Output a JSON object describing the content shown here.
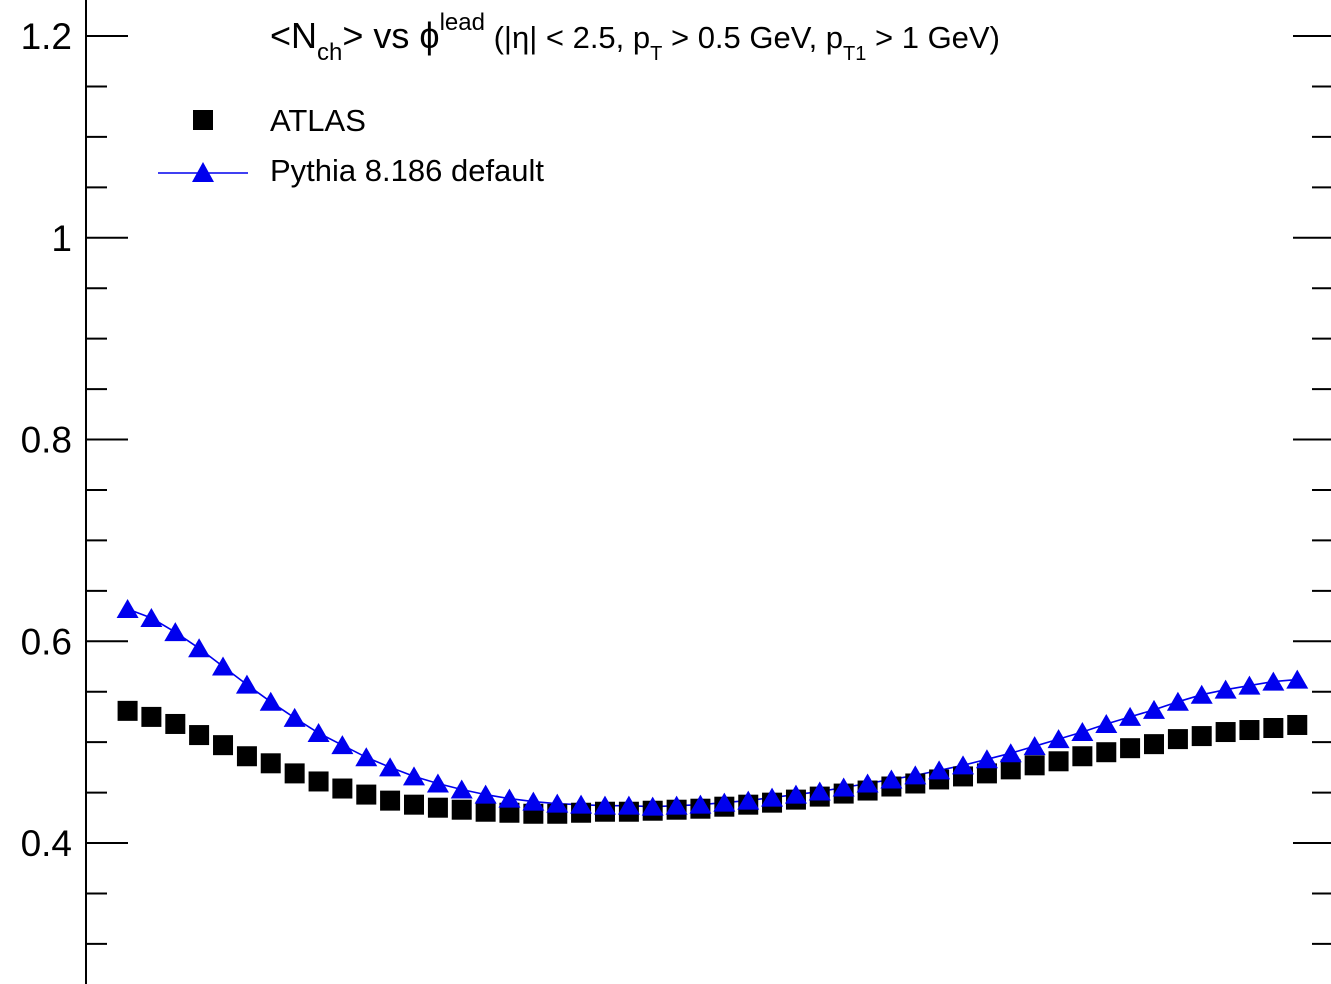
{
  "chart_data": {
    "type": "scatter",
    "title": {
      "prefix": "<N",
      "sub_ch": "ch",
      "mid": "> vs ",
      "phi": "ϕ",
      "sup_lead": "lead",
      "cond1": " (|η| < 2.5, p",
      "sub_T": "T",
      "cond2": " > 0.5 GeV, p",
      "sub_T1": "T1",
      "cond3": " > 1 GeV)"
    },
    "xlabel": "",
    "ylabel": "",
    "xlim": [
      0,
      1
    ],
    "ylim": [
      0.26,
      1.24
    ],
    "y_major_ticks": [
      0.4,
      0.6,
      0.8,
      1.0,
      1.2
    ],
    "y_tick_labels": [
      "0.4",
      "0.6",
      "0.8",
      "1",
      "1.2"
    ],
    "y_minor_ticks": [
      0.3,
      0.35,
      0.45,
      0.5,
      0.55,
      0.65,
      0.7,
      0.75,
      0.85,
      0.9,
      0.95,
      1.05,
      1.1,
      1.15
    ],
    "grid": false,
    "legend_position": "top-left",
    "x": [
      0.0081,
      0.0282,
      0.0484,
      0.0685,
      0.0887,
      0.1089,
      0.129,
      0.1492,
      0.1694,
      0.1895,
      0.2097,
      0.2298,
      0.25,
      0.2702,
      0.2903,
      0.3105,
      0.3306,
      0.3508,
      0.371,
      0.3911,
      0.4113,
      0.4315,
      0.4516,
      0.4718,
      0.4919,
      0.5121,
      0.5323,
      0.5524,
      0.5726,
      0.5927,
      0.6129,
      0.6331,
      0.6532,
      0.6734,
      0.6935,
      0.7137,
      0.7339,
      0.754,
      0.7742,
      0.7944,
      0.8145,
      0.8347,
      0.8548,
      0.875,
      0.8952,
      0.9153,
      0.9355,
      0.9556,
      0.9758,
      0.996
    ],
    "series": [
      {
        "name": "ATLAS",
        "marker": "square",
        "color": "#000000",
        "values": [
          0.531,
          0.525,
          0.518,
          0.507,
          0.497,
          0.486,
          0.479,
          0.469,
          0.461,
          0.454,
          0.448,
          0.442,
          0.438,
          0.435,
          0.433,
          0.431,
          0.43,
          0.429,
          0.429,
          0.43,
          0.431,
          0.431,
          0.432,
          0.433,
          0.434,
          0.436,
          0.438,
          0.44,
          0.443,
          0.446,
          0.449,
          0.452,
          0.456,
          0.459,
          0.463,
          0.466,
          0.469,
          0.473,
          0.477,
          0.481,
          0.486,
          0.49,
          0.494,
          0.498,
          0.503,
          0.506,
          0.51,
          0.512,
          0.514,
          0.517
        ]
      },
      {
        "name": "Pythia 8.186 default",
        "marker": "triangle",
        "line": true,
        "color": "#0000ee",
        "values": [
          0.632,
          0.623,
          0.609,
          0.593,
          0.575,
          0.557,
          0.54,
          0.524,
          0.509,
          0.497,
          0.485,
          0.475,
          0.466,
          0.459,
          0.453,
          0.448,
          0.444,
          0.441,
          0.439,
          0.438,
          0.437,
          0.437,
          0.436,
          0.437,
          0.438,
          0.44,
          0.442,
          0.445,
          0.448,
          0.451,
          0.455,
          0.459,
          0.463,
          0.467,
          0.472,
          0.477,
          0.483,
          0.489,
          0.496,
          0.503,
          0.51,
          0.518,
          0.525,
          0.532,
          0.54,
          0.547,
          0.552,
          0.556,
          0.56,
          0.562
        ]
      }
    ]
  }
}
